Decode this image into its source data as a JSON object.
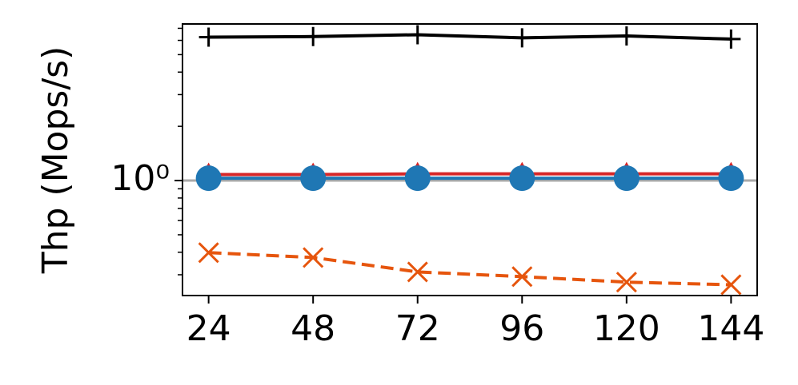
{
  "chart_data": {
    "type": "line",
    "y_label": "Thp (Mops/s)",
    "x": [
      24,
      48,
      72,
      96,
      120,
      144
    ],
    "series": [
      {
        "color": "#000000",
        "marker": "plus",
        "dash": false,
        "values": [
          6.25,
          6.3,
          6.45,
          6.2,
          6.35,
          6.1
        ]
      },
      {
        "color": "#d62728",
        "marker": "triangle",
        "dash": false,
        "values": [
          1.08,
          1.08,
          1.09,
          1.09,
          1.09,
          1.09
        ]
      },
      {
        "color": "#1f77b4",
        "marker": "circle",
        "dash": false,
        "values": [
          1.03,
          1.03,
          1.03,
          1.03,
          1.03,
          1.03
        ]
      },
      {
        "color": "#e6550d",
        "marker": "x",
        "dash": true,
        "values": [
          0.398,
          0.374,
          0.311,
          0.293,
          0.273,
          0.264
        ]
      }
    ],
    "reference_line": {
      "value": 1,
      "color": "#aaaaaa"
    },
    "xlim": [
      18,
      150
    ],
    "xticks": [
      24,
      48,
      72,
      96,
      120,
      144
    ],
    "ylim": [
      0.23,
      7.4
    ],
    "log_y": true,
    "yticks": [
      {
        "value": 1,
        "label": "10⁰"
      }
    ],
    "yminorticks": [
      0.3,
      0.4,
      0.5,
      0.6,
      0.7,
      0.8,
      0.9,
      2,
      3,
      4,
      5,
      6,
      7
    ]
  }
}
